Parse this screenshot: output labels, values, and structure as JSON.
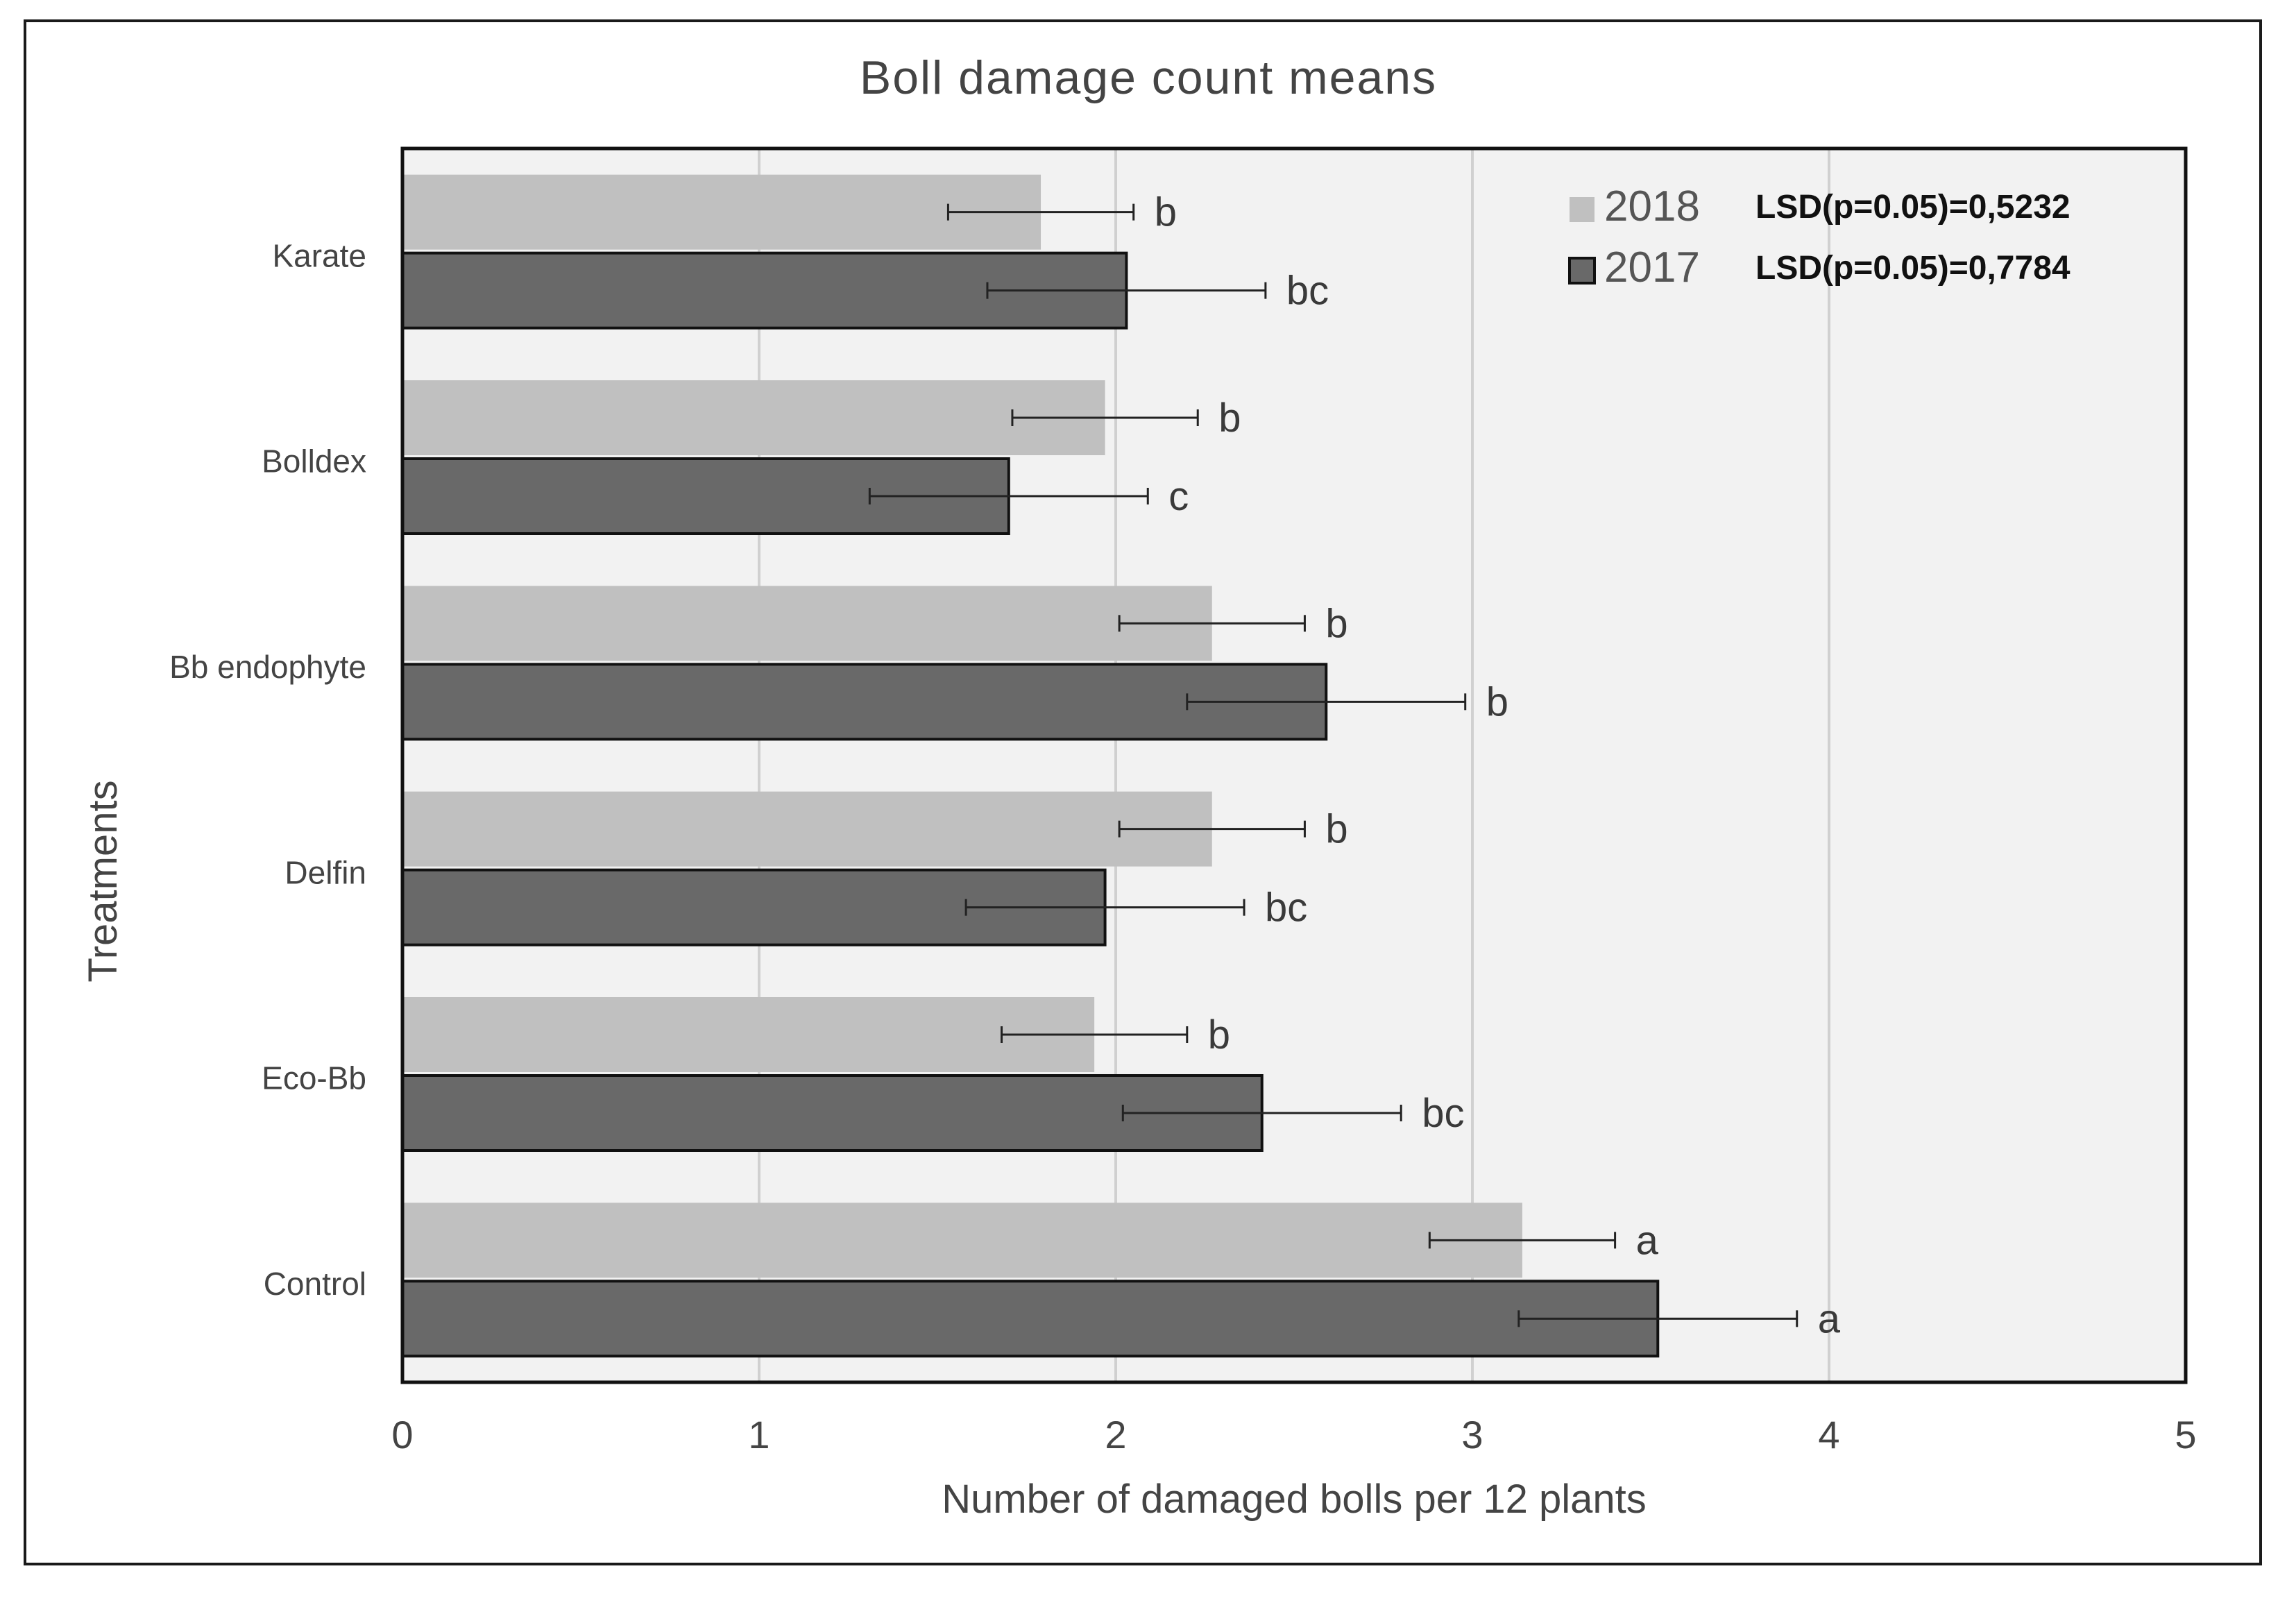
{
  "chart_data": {
    "type": "bar",
    "orientation": "horizontal",
    "title": "Boll damage count means",
    "xlabel": "Number of damaged bolls per 12 plants",
    "ylabel": "Treatments",
    "xlim": [
      0,
      5
    ],
    "x_ticks": [
      "0",
      "1",
      "2",
      "3",
      "4",
      "5"
    ],
    "grid": true,
    "legend_position": "top-right",
    "categories": [
      "Karate",
      "Bolldex",
      "Bb endophyte",
      "Delfin",
      "Eco-Bb",
      "Control"
    ],
    "series": [
      {
        "name": "2018",
        "annotation": "LSD(p=0.05)=0,5232",
        "color": "#c0c0c0",
        "values": [
          1.79,
          1.97,
          2.27,
          2.27,
          1.94,
          3.14
        ],
        "error": [
          0.26,
          0.26,
          0.26,
          0.26,
          0.26,
          0.26
        ],
        "labels": [
          "b",
          "b",
          "b",
          "b",
          "b",
          "a"
        ]
      },
      {
        "name": "2017",
        "annotation": "LSD(p=0.05)=0,7784",
        "color": "#696969",
        "values": [
          2.03,
          1.7,
          2.59,
          1.97,
          2.41,
          3.52
        ],
        "error": [
          0.39,
          0.39,
          0.39,
          0.39,
          0.39,
          0.39
        ],
        "labels": [
          "bc",
          "c",
          "b",
          "bc",
          "bc",
          "a"
        ]
      }
    ]
  }
}
